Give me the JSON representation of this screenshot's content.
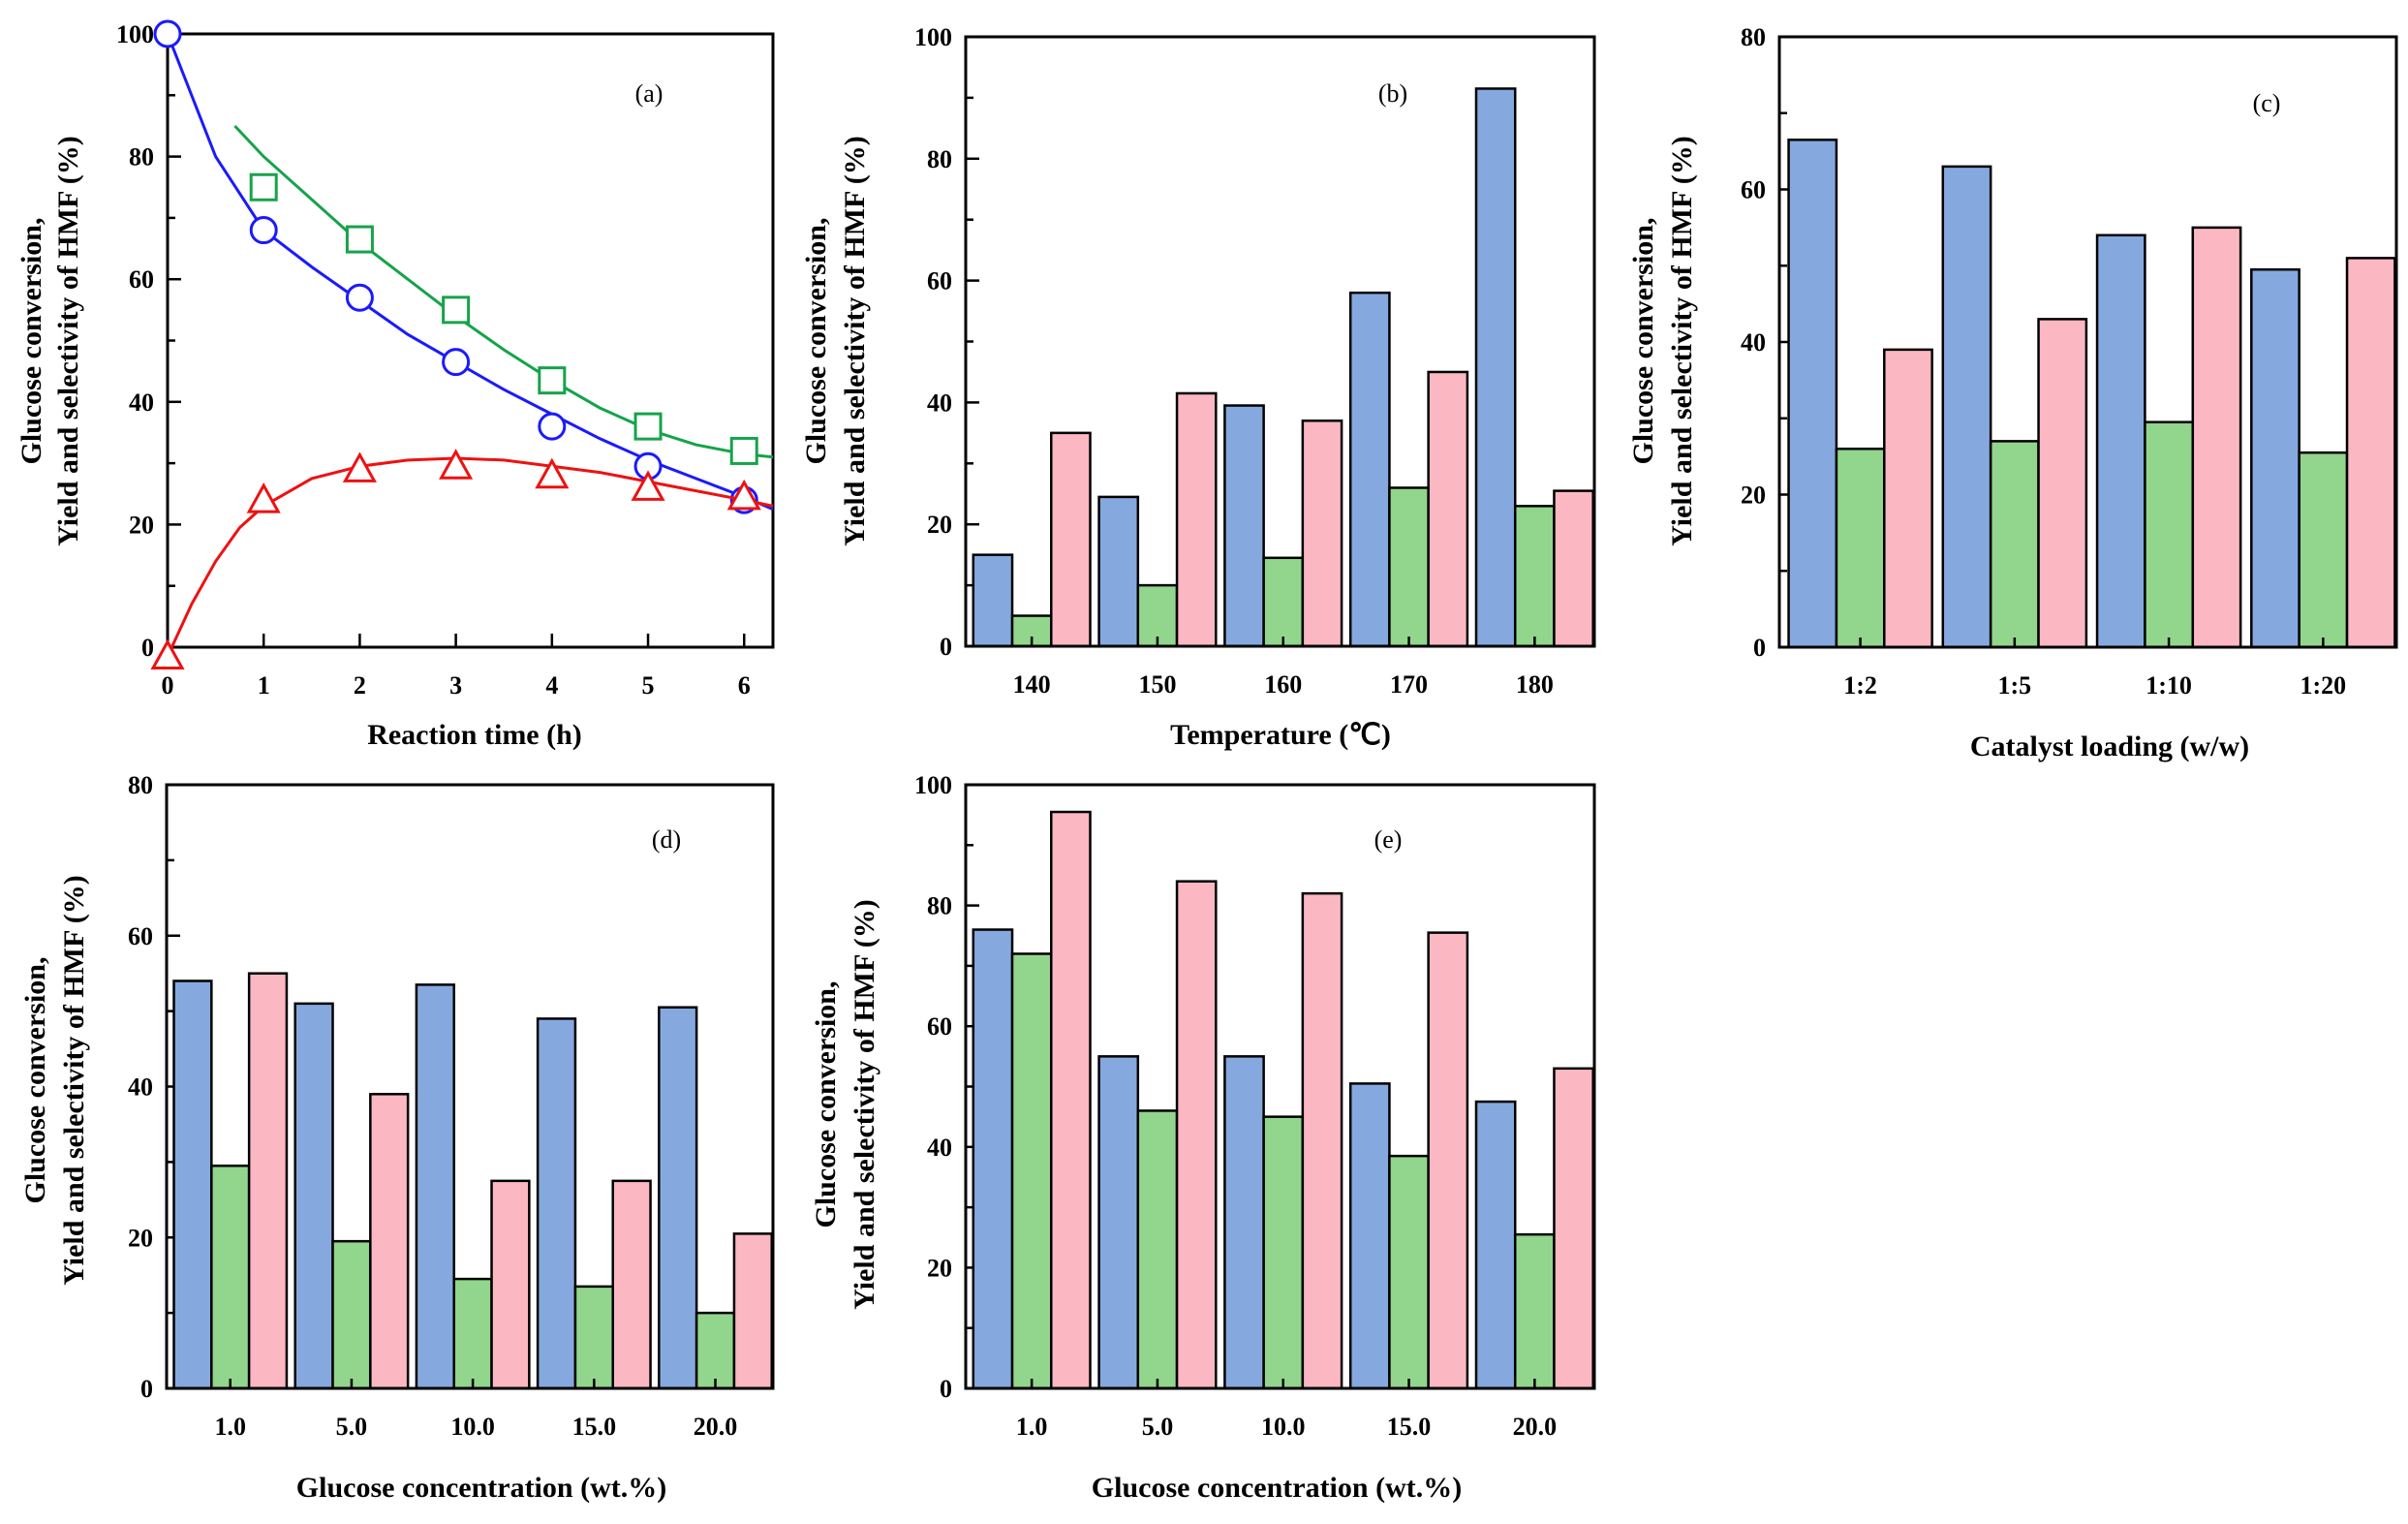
{
  "chart_data": [
    {
      "id": "a",
      "type": "scatter",
      "panel_label": "(a)",
      "xlabel": "Reaction time (h)",
      "ylabel": [
        "Glucose conversion,",
        "Yield and selectivity of HMF (%)"
      ],
      "xlim": [
        0,
        6.3
      ],
      "ylim": [
        0,
        100
      ],
      "xticks": [
        0,
        1,
        2,
        3,
        4,
        5,
        6
      ],
      "yticks": [
        0,
        20,
        40,
        60,
        80,
        100
      ],
      "series": [
        {
          "name": "circles",
          "marker": "circle",
          "color": "#1a1aff",
          "x": [
            0,
            1,
            2,
            3,
            4,
            5,
            6
          ],
          "values": [
            100,
            68,
            57,
            46.5,
            36,
            29.5,
            24
          ],
          "fit_x": [
            0,
            0.5,
            1,
            1.5,
            2,
            2.5,
            3,
            3.5,
            4,
            4.5,
            5,
            5.5,
            6,
            6.3
          ],
          "fit_y": [
            100,
            80,
            68,
            62,
            56.5,
            51,
            46.5,
            42,
            38,
            34,
            30.5,
            27.5,
            24.5,
            22.5
          ]
        },
        {
          "name": "squares",
          "marker": "square",
          "color": "#16a34a",
          "x": [
            1,
            2,
            3,
            4,
            5,
            6
          ],
          "values": [
            75,
            66.5,
            55,
            43.5,
            36,
            32
          ],
          "fit_x": [
            0.7,
            1,
            1.5,
            2,
            2.5,
            3,
            3.5,
            4,
            4.5,
            5,
            5.5,
            6,
            6.3
          ],
          "fit_y": [
            85,
            80,
            73,
            66,
            60,
            54,
            48.5,
            43.5,
            39,
            35.5,
            33,
            31.5,
            31
          ]
        },
        {
          "name": "triangles",
          "marker": "triangle",
          "color": "#ee1111",
          "x": [
            0,
            1,
            2,
            3,
            4,
            5,
            6
          ],
          "values": [
            -1.5,
            24,
            29,
            29.5,
            28,
            26,
            24.5
          ],
          "fit_x": [
            0,
            0.25,
            0.5,
            0.75,
            1,
            1.5,
            2,
            2.5,
            3,
            3.5,
            4,
            4.5,
            5,
            5.5,
            6,
            6.3
          ],
          "fit_y": [
            -1.5,
            7,
            14,
            19.5,
            23,
            27.5,
            29.5,
            30.5,
            30.8,
            30.5,
            29.5,
            28.5,
            27,
            25.5,
            24,
            23
          ]
        }
      ]
    },
    {
      "id": "b",
      "type": "bar",
      "panel_label": "(b)",
      "xlabel": "Temperature (℃)",
      "ylabel": [
        "Glucose conversion,",
        "Yield and selectivity of HMF (%)"
      ],
      "ylim": [
        0,
        100
      ],
      "yticks": [
        0,
        20,
        40,
        60,
        80,
        100
      ],
      "categories": [
        "140",
        "150",
        "160",
        "170",
        "180"
      ],
      "series": [
        {
          "name": "conversion",
          "color": "#85a9df",
          "values": [
            15,
            24.5,
            39.5,
            58,
            91.5
          ]
        },
        {
          "name": "yield",
          "color": "#92d58c",
          "values": [
            5,
            10,
            14.5,
            26,
            23
          ]
        },
        {
          "name": "selectivity",
          "color": "#fbb8c2",
          "values": [
            35,
            41.5,
            37,
            45,
            25.5
          ]
        }
      ]
    },
    {
      "id": "c",
      "type": "bar",
      "panel_label": "(c)",
      "xlabel": "Catalyst loading (w/w)",
      "ylabel": [
        "Glucose conversion,",
        "Yield and selectivity of HMF (%)"
      ],
      "ylim": [
        0,
        80
      ],
      "yticks": [
        0,
        20,
        40,
        60,
        80
      ],
      "categories": [
        "1:2",
        "1:5",
        "1:10",
        "1:20"
      ],
      "series": [
        {
          "name": "conversion",
          "color": "#85a9df",
          "values": [
            66.5,
            63,
            54,
            49.5
          ]
        },
        {
          "name": "yield",
          "color": "#92d58c",
          "values": [
            26,
            27,
            29.5,
            25.5
          ]
        },
        {
          "name": "selectivity",
          "color": "#fbb8c2",
          "values": [
            39,
            43,
            55,
            51
          ]
        }
      ]
    },
    {
      "id": "d",
      "type": "bar",
      "panel_label": "(d)",
      "xlabel": "Glucose concentration (wt.%)",
      "ylabel": [
        "Glucose conversion,",
        "Yield and selectivity of HMF (%)"
      ],
      "ylim": [
        0,
        80
      ],
      "yticks": [
        0,
        20,
        40,
        60,
        80
      ],
      "categories": [
        "1.0",
        "5.0",
        "10.0",
        "15.0",
        "20.0"
      ],
      "series": [
        {
          "name": "conversion",
          "color": "#85a9df",
          "values": [
            54,
            51,
            53.5,
            49,
            50.5
          ]
        },
        {
          "name": "yield",
          "color": "#92d58c",
          "values": [
            29.5,
            19.5,
            14.5,
            13.5,
            10
          ]
        },
        {
          "name": "selectivity",
          "color": "#fbb8c2",
          "values": [
            55,
            39,
            27.5,
            27.5,
            20.5
          ]
        }
      ]
    },
    {
      "id": "e",
      "type": "bar",
      "panel_label": "(e)",
      "xlabel": "Glucose concentration (wt.%)",
      "ylabel": [
        "Glucose conversion,",
        "Yield and selectivity of HMF (%)"
      ],
      "ylim": [
        0,
        100
      ],
      "yticks": [
        0,
        20,
        40,
        60,
        80,
        100
      ],
      "categories": [
        "1.0",
        "5.0",
        "10.0",
        "15.0",
        "20.0"
      ],
      "series": [
        {
          "name": "conversion",
          "color": "#85a9df",
          "values": [
            76,
            55,
            55,
            50.5,
            47.5
          ]
        },
        {
          "name": "yield",
          "color": "#92d58c",
          "values": [
            72,
            46,
            45,
            38.5,
            25.5
          ]
        },
        {
          "name": "selectivity",
          "color": "#fbb8c2",
          "values": [
            95.5,
            84,
            82,
            75.5,
            53
          ]
        }
      ]
    }
  ]
}
